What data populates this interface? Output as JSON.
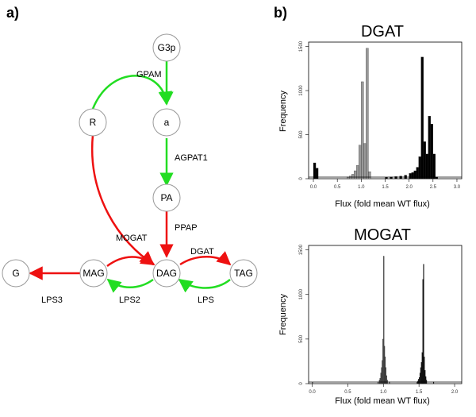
{
  "panel_labels": {
    "a": "a)",
    "b": "b)"
  },
  "colors": {
    "activation": "#22dd22",
    "inhibition": "#ee1111",
    "light_bar": "#999999",
    "dark_bar": "#000000",
    "grey_bar": "#555555"
  },
  "network": {
    "nodes": [
      {
        "id": "G3p",
        "label": "G3p"
      },
      {
        "id": "R",
        "label": "R"
      },
      {
        "id": "a",
        "label": "a"
      },
      {
        "id": "PA",
        "label": "PA"
      },
      {
        "id": "G",
        "label": "G"
      },
      {
        "id": "MAG",
        "label": "MAG"
      },
      {
        "id": "DAG",
        "label": "DAG"
      },
      {
        "id": "TAG",
        "label": "TAG"
      }
    ],
    "edges": [
      {
        "id": "gpam-r",
        "from": "R",
        "to": "a",
        "label": "",
        "color": "green"
      },
      {
        "id": "g3p-a",
        "from": "G3p",
        "to": "a",
        "label": "GPAM",
        "color": "green"
      },
      {
        "id": "a-pa",
        "from": "a",
        "to": "PA",
        "label": "AGPAT1",
        "color": "green"
      },
      {
        "id": "pa-dag",
        "from": "PA",
        "to": "DAG",
        "label": "PPAP",
        "color": "red"
      },
      {
        "id": "r-dag",
        "from": "R",
        "to": "DAG",
        "label": "MOGAT",
        "color": "red"
      },
      {
        "id": "mag-dag",
        "from": "MAG",
        "to": "DAG",
        "label": "",
        "color": "red"
      },
      {
        "id": "dag-mag",
        "from": "DAG",
        "to": "MAG",
        "label": "LPS2",
        "color": "green"
      },
      {
        "id": "dag-tag",
        "from": "DAG",
        "to": "TAG",
        "label": "DGAT",
        "color": "red"
      },
      {
        "id": "tag-dag",
        "from": "TAG",
        "to": "DAG",
        "label": "LPS",
        "color": "green"
      },
      {
        "id": "mag-g",
        "from": "MAG",
        "to": "G",
        "label": "LPS3",
        "color": "red"
      }
    ]
  },
  "chart_data": [
    {
      "type": "bar",
      "title": "DGAT",
      "xlabel": "Flux (fold mean WT flux)",
      "ylabel": "Frequency",
      "xlim": [
        -0.1,
        3.1
      ],
      "ylim": [
        0,
        1550
      ],
      "xticks": [
        "0.0",
        "0.5",
        "1.0",
        "1.5",
        "2.0",
        "2.5",
        "3.0"
      ],
      "yticks": [
        "0",
        "500",
        "1000",
        "1500"
      ],
      "series": [
        {
          "color": "#999999",
          "bin_width": 0.05,
          "x": [
            0.7,
            0.75,
            0.8,
            0.85,
            0.9,
            0.95,
            1.0,
            1.05,
            1.1,
            1.15
          ],
          "values": [
            20,
            30,
            50,
            90,
            150,
            380,
            1100,
            400,
            1480,
            80
          ]
        },
        {
          "color": "#000000",
          "bin_width": 0.05,
          "x": [
            0.0,
            0.05,
            1.5,
            1.6,
            1.7,
            1.8,
            1.9,
            2.0,
            2.05,
            2.1,
            2.15,
            2.2,
            2.25,
            2.3,
            2.35,
            2.4,
            2.45,
            2.5,
            2.55
          ],
          "values": [
            180,
            120,
            15,
            20,
            25,
            30,
            40,
            60,
            70,
            90,
            130,
            250,
            1380,
            420,
            280,
            710,
            620,
            280,
            20
          ]
        }
      ]
    },
    {
      "type": "bar",
      "title": "MOGAT",
      "xlabel": "Flux (fold mean WT flux)",
      "ylabel": "Frequency",
      "xlim": [
        -0.05,
        2.1
      ],
      "ylim": [
        0,
        1550
      ],
      "xticks": [
        "0.0",
        "0.5",
        "1.0",
        "1.5",
        "2.0"
      ],
      "yticks": [
        "0",
        "500",
        "1000",
        "1500"
      ],
      "series": [
        {
          "color": "#555555",
          "bin_width": 0.01,
          "x": [
            0.0,
            0.92,
            0.94,
            0.95,
            0.96,
            0.97,
            0.98,
            0.99,
            1.0,
            1.01,
            1.02,
            1.03,
            1.04,
            1.05,
            1.08
          ],
          "values": [
            15,
            20,
            40,
            60,
            120,
            180,
            260,
            500,
            1430,
            420,
            300,
            180,
            90,
            40,
            20
          ]
        },
        {
          "color": "#000000",
          "bin_width": 0.01,
          "x": [
            1.47,
            1.48,
            1.49,
            1.5,
            1.51,
            1.52,
            1.53,
            1.54,
            1.55,
            1.56,
            1.57,
            1.58,
            1.59,
            1.6,
            1.7
          ],
          "values": [
            20,
            30,
            50,
            70,
            120,
            180,
            240,
            350,
            1170,
            1340,
            300,
            150,
            80,
            40,
            20
          ]
        }
      ]
    }
  ]
}
